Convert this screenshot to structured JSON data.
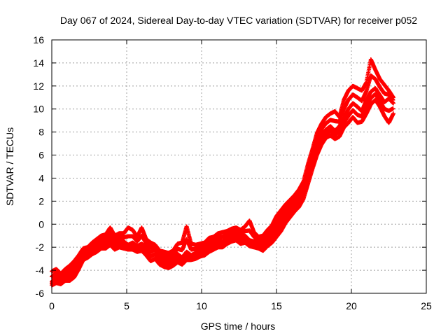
{
  "chart_data": {
    "type": "scatter",
    "title": "Day 067 of 2024, Sidereal Day-to-day VTEC variation (SDTVAR) for receiver p052",
    "xlabel": "GPS time / hours",
    "ylabel": "SDTVAR / TECUs",
    "xlim": [
      0,
      25
    ],
    "ylim": [
      -6,
      16
    ],
    "xticks": [
      0,
      5,
      10,
      15,
      20,
      25
    ],
    "yticks": [
      -6,
      -4,
      -2,
      0,
      2,
      4,
      6,
      8,
      10,
      12,
      14,
      16
    ],
    "grid": true,
    "marker": "+",
    "series": [
      {
        "name": "SDTVAR",
        "color": "#ff0000",
        "x": [
          0.0,
          0.3,
          0.6,
          0.9,
          1.2,
          1.5,
          1.8,
          2.1,
          2.4,
          2.7,
          3.0,
          3.3,
          3.6,
          3.9,
          4.2,
          4.5,
          4.8,
          5.1,
          5.4,
          5.7,
          6.0,
          6.3,
          6.6,
          6.9,
          7.2,
          7.5,
          7.8,
          8.1,
          8.4,
          8.7,
          9.0,
          9.3,
          9.6,
          9.9,
          10.2,
          10.5,
          10.8,
          11.1,
          11.4,
          11.7,
          12.0,
          12.3,
          12.6,
          12.9,
          13.2,
          13.5,
          13.8,
          14.1,
          14.4,
          14.7,
          15.0,
          15.3,
          15.6,
          15.9,
          16.2,
          16.5,
          16.8,
          17.1,
          17.4,
          17.7,
          18.0,
          18.3,
          18.6,
          18.9,
          19.2,
          19.5,
          19.8,
          20.1,
          20.4,
          20.7,
          21.0,
          21.3,
          21.6,
          21.9,
          22.2,
          22.5,
          22.8
        ],
        "y": [
          -5.0,
          -4.6,
          -4.8,
          -4.4,
          -4.2,
          -3.8,
          -3.2,
          -2.6,
          -2.4,
          -2.0,
          -1.8,
          -1.5,
          -1.6,
          -1.2,
          -1.7,
          -1.4,
          -1.5,
          -1.8,
          -1.6,
          -1.9,
          -1.7,
          -2.0,
          -2.4,
          -2.2,
          -2.8,
          -3.0,
          -3.2,
          -2.9,
          -2.6,
          -2.9,
          -2.4,
          -2.7,
          -2.5,
          -2.3,
          -2.1,
          -1.8,
          -1.6,
          -1.4,
          -1.5,
          -1.2,
          -1.0,
          -0.9,
          -1.1,
          -1.0,
          -1.4,
          -1.5,
          -1.7,
          -1.6,
          -1.2,
          -0.9,
          -0.3,
          0.4,
          0.9,
          1.4,
          1.8,
          2.3,
          3.0,
          4.4,
          5.6,
          6.9,
          7.8,
          8.2,
          8.5,
          8.1,
          8.5,
          9.2,
          10.0,
          10.5,
          10.2,
          9.8,
          10.8,
          11.5,
          11.8,
          11.2,
          10.6,
          10.9,
          10.5
        ],
        "y_low": [
          -5.3,
          -5.1,
          -5.2,
          -4.9,
          -4.9,
          -4.6,
          -3.9,
          -3.1,
          -2.9,
          -2.6,
          -2.4,
          -2.1,
          -2.1,
          -1.8,
          -2.2,
          -2.0,
          -2.1,
          -2.2,
          -2.2,
          -2.4,
          -2.3,
          -2.7,
          -3.2,
          -3.0,
          -3.5,
          -3.7,
          -3.8,
          -3.6,
          -3.3,
          -3.5,
          -3.1,
          -3.1,
          -3.0,
          -2.8,
          -2.7,
          -2.4,
          -2.2,
          -2.0,
          -2.0,
          -1.7,
          -1.5,
          -1.4,
          -1.7,
          -1.6,
          -1.9,
          -2.0,
          -2.1,
          -2.3,
          -1.9,
          -1.6,
          -1.1,
          -0.6,
          0.1,
          0.6,
          1.1,
          1.5,
          2.2,
          3.5,
          4.8,
          6.0,
          6.9,
          7.5,
          7.7,
          7.4,
          7.6,
          8.4,
          8.8,
          9.3,
          8.8,
          8.9,
          9.6,
          10.4,
          10.8,
          10.2,
          9.4,
          8.8,
          9.6
        ],
        "y_high": [
          -4.1,
          -3.9,
          -4.3,
          -3.9,
          -3.6,
          -3.2,
          -2.7,
          -2.1,
          -2.0,
          -1.6,
          -1.3,
          -1.0,
          -0.9,
          -0.3,
          -1.0,
          -0.8,
          -0.8,
          -0.3,
          -0.5,
          -1.1,
          -0.3,
          -1.3,
          -1.6,
          -1.8,
          -2.3,
          -2.4,
          -2.5,
          -2.3,
          -1.7,
          -1.6,
          -0.2,
          -1.7,
          -1.8,
          -1.7,
          -1.6,
          -1.2,
          -1.1,
          -0.8,
          -0.7,
          -0.6,
          -0.4,
          -0.3,
          -0.5,
          -0.2,
          0.3,
          -0.7,
          -1.1,
          -1.0,
          -0.5,
          -0.1,
          0.7,
          1.2,
          1.7,
          2.1,
          2.5,
          3.0,
          3.7,
          5.2,
          6.5,
          7.9,
          8.7,
          9.3,
          9.6,
          9.8,
          9.3,
          10.8,
          11.6,
          12.0,
          11.8,
          11.6,
          12.3,
          14.3,
          13.4,
          12.6,
          12.1,
          11.6,
          11.0
        ]
      }
    ]
  }
}
